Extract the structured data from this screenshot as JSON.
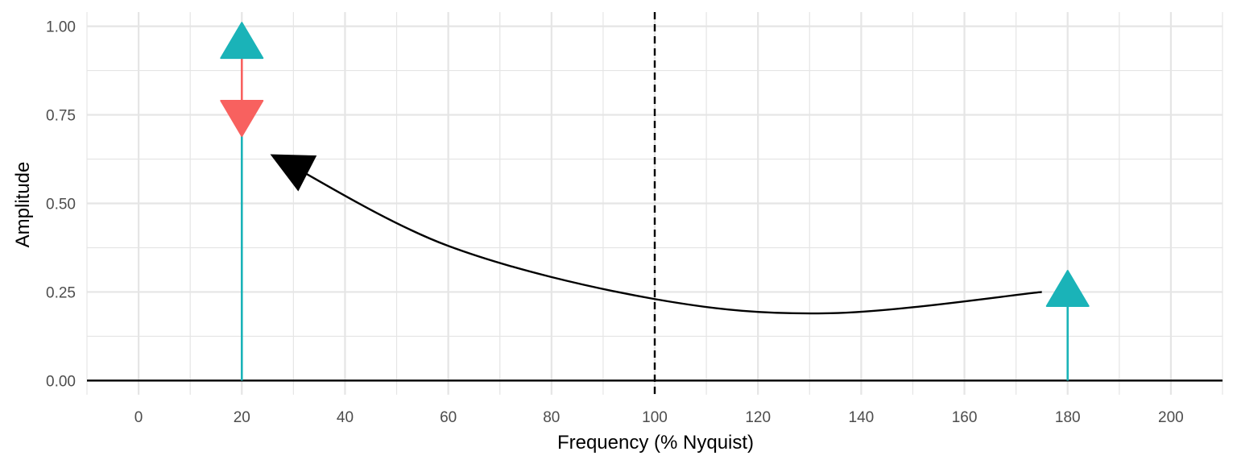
{
  "chart_data": {
    "type": "line",
    "title": "",
    "xlabel": "Frequency (% Nyquist)",
    "ylabel": "Amplitude",
    "xlim": [
      -10,
      210
    ],
    "ylim": [
      -0.04,
      1.04
    ],
    "x_ticks": [
      0,
      20,
      40,
      60,
      80,
      100,
      120,
      140,
      160,
      180,
      200
    ],
    "x_tick_labels": [
      "0",
      "20",
      "40",
      "60",
      "80",
      "100",
      "120",
      "140",
      "160",
      "180",
      "200"
    ],
    "x_minor_step": 10,
    "y_ticks": [
      0,
      0.25,
      0.5,
      0.75,
      1.0
    ],
    "y_tick_labels": [
      "0.00",
      "0.25",
      "0.50",
      "0.75",
      "1.00"
    ],
    "grid": true,
    "nyquist_line_x": 100,
    "baseline_y": 0,
    "colors": {
      "teal": "#1AB3B8",
      "red": "#F8615F",
      "black": "#000000",
      "grid": "#E5E5E5"
    },
    "stems": [
      {
        "x": 20,
        "y0": 0,
        "y1": 0.75,
        "color": "#1AB3B8"
      },
      {
        "x": 20,
        "y0": 0.75,
        "y1": 1.0,
        "color": "#F8615F"
      },
      {
        "x": 180,
        "y0": 0,
        "y1": 0.25,
        "color": "#1AB3B8"
      }
    ],
    "markers": [
      {
        "x": 20,
        "y": 0.95,
        "shape": "triangle-up",
        "color": "#1AB3B8"
      },
      {
        "x": 20,
        "y": 0.75,
        "shape": "triangle-down",
        "color": "#F8615F"
      },
      {
        "x": 180,
        "y": 0.25,
        "shape": "triangle-up",
        "color": "#1AB3B8"
      }
    ],
    "alias_arrow": {
      "color": "#000000",
      "points": [
        [
          175,
          0.25
        ],
        [
          134,
          0.19
        ],
        [
          100,
          0.23
        ],
        [
          60,
          0.38
        ],
        [
          28,
          0.62
        ]
      ],
      "head": "arrow-black"
    }
  }
}
